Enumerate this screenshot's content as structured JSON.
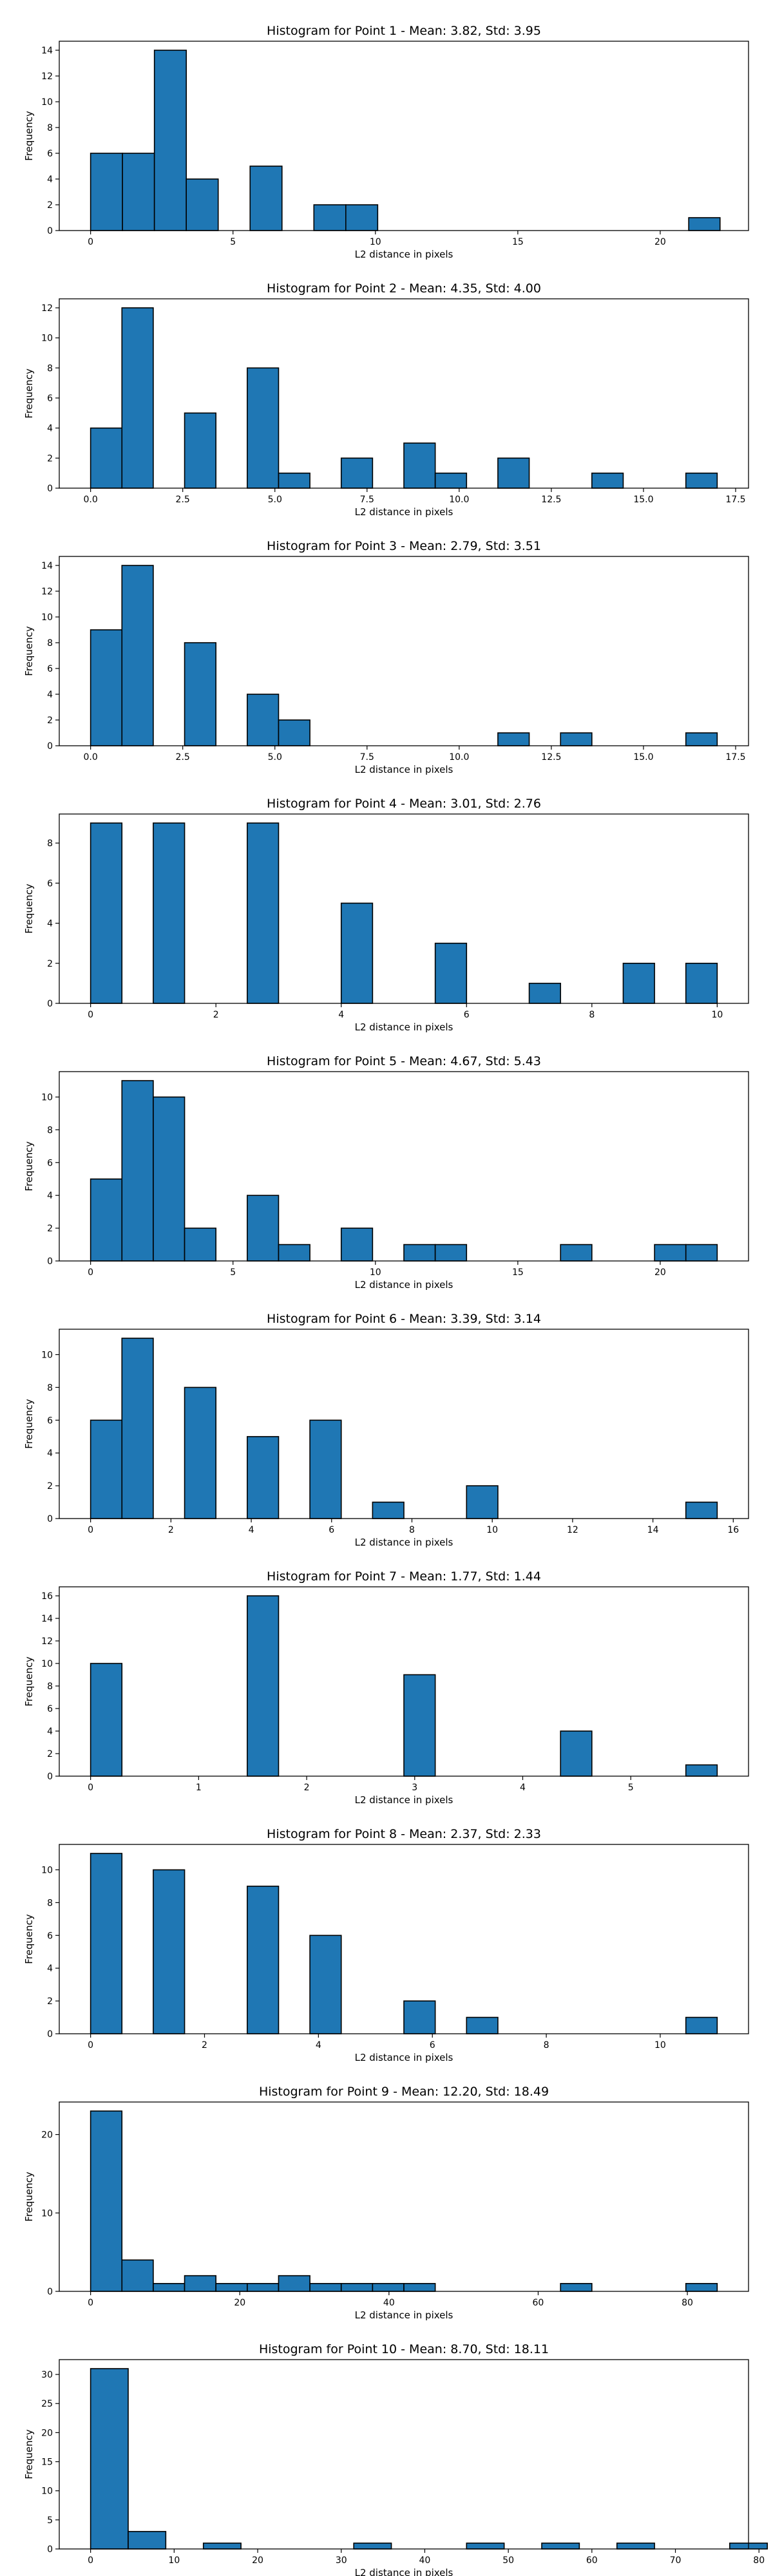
{
  "chart_data": [
    {
      "type": "bar",
      "title": "Histogram for Point 1 - Mean: 3.82, Std: 3.95",
      "xlabel": "L2 distance in pixels",
      "ylabel": "Frequency",
      "xlim": [
        -1.1,
        23.1
      ],
      "ylim": [
        0,
        14.7
      ],
      "xticks": [
        {
          "v": 0,
          "l": "0"
        },
        {
          "v": 5,
          "l": "5"
        },
        {
          "v": 10,
          "l": "10"
        },
        {
          "v": 15,
          "l": "15"
        },
        {
          "v": 20,
          "l": "20"
        }
      ],
      "yticks": [
        {
          "v": 0,
          "l": "0"
        },
        {
          "v": 2,
          "l": "2"
        },
        {
          "v": 4,
          "l": "4"
        },
        {
          "v": 6,
          "l": "6"
        },
        {
          "v": 8,
          "l": "8"
        },
        {
          "v": 10,
          "l": "10"
        },
        {
          "v": 12,
          "l": "12"
        },
        {
          "v": 14,
          "l": "14"
        }
      ],
      "bins": [
        [
          0,
          1.12,
          6
        ],
        [
          1.12,
          2.24,
          6
        ],
        [
          2.24,
          3.36,
          14
        ],
        [
          3.36,
          4.48,
          4
        ],
        [
          5.6,
          6.72,
          5
        ],
        [
          7.84,
          8.96,
          2
        ],
        [
          8.96,
          10.08,
          2
        ],
        [
          21.0,
          22.1,
          1
        ]
      ],
      "grid": false
    },
    {
      "type": "bar",
      "title": "Histogram for Point 2 - Mean: 4.35, Std: 4.00",
      "xlabel": "L2 distance in pixels",
      "ylabel": "Frequency",
      "xlim": [
        -0.85,
        17.85
      ],
      "ylim": [
        0,
        12.6
      ],
      "xticks": [
        {
          "v": 0,
          "l": "0.0"
        },
        {
          "v": 2.5,
          "l": "2.5"
        },
        {
          "v": 5,
          "l": "5.0"
        },
        {
          "v": 7.5,
          "l": "7.5"
        },
        {
          "v": 10,
          "l": "10.0"
        },
        {
          "v": 12.5,
          "l": "12.5"
        },
        {
          "v": 15,
          "l": "15.0"
        },
        {
          "v": 17.5,
          "l": "17.5"
        }
      ],
      "yticks": [
        {
          "v": 0,
          "l": "0"
        },
        {
          "v": 2,
          "l": "2"
        },
        {
          "v": 4,
          "l": "4"
        },
        {
          "v": 6,
          "l": "6"
        },
        {
          "v": 8,
          "l": "8"
        },
        {
          "v": 10,
          "l": "10"
        },
        {
          "v": 12,
          "l": "12"
        }
      ],
      "bins": [
        [
          0,
          0.85,
          4
        ],
        [
          0.85,
          1.7,
          12
        ],
        [
          2.55,
          3.4,
          5
        ],
        [
          4.25,
          5.1,
          8
        ],
        [
          5.1,
          5.95,
          1
        ],
        [
          6.8,
          7.65,
          2
        ],
        [
          8.5,
          9.35,
          3
        ],
        [
          9.35,
          10.2,
          1
        ],
        [
          11.05,
          11.9,
          2
        ],
        [
          13.6,
          14.45,
          1
        ],
        [
          16.15,
          17.0,
          1
        ]
      ],
      "grid": false
    },
    {
      "type": "bar",
      "title": "Histogram for Point 3 - Mean: 2.79, Std: 3.51",
      "xlabel": "L2 distance in pixels",
      "ylabel": "Frequency",
      "xlim": [
        -0.85,
        17.85
      ],
      "ylim": [
        0,
        14.7
      ],
      "xticks": [
        {
          "v": 0,
          "l": "0.0"
        },
        {
          "v": 2.5,
          "l": "2.5"
        },
        {
          "v": 5,
          "l": "5.0"
        },
        {
          "v": 7.5,
          "l": "7.5"
        },
        {
          "v": 10,
          "l": "10.0"
        },
        {
          "v": 12.5,
          "l": "12.5"
        },
        {
          "v": 15,
          "l": "15.0"
        },
        {
          "v": 17.5,
          "l": "17.5"
        }
      ],
      "yticks": [
        {
          "v": 0,
          "l": "0"
        },
        {
          "v": 2,
          "l": "2"
        },
        {
          "v": 4,
          "l": "4"
        },
        {
          "v": 6,
          "l": "6"
        },
        {
          "v": 8,
          "l": "8"
        },
        {
          "v": 10,
          "l": "10"
        },
        {
          "v": 12,
          "l": "12"
        },
        {
          "v": 14,
          "l": "14"
        }
      ],
      "bins": [
        [
          0,
          0.85,
          9
        ],
        [
          0.85,
          1.7,
          14
        ],
        [
          2.55,
          3.4,
          8
        ],
        [
          4.25,
          5.1,
          4
        ],
        [
          5.1,
          5.95,
          2
        ],
        [
          11.05,
          11.9,
          1
        ],
        [
          12.75,
          13.6,
          1
        ],
        [
          16.15,
          17.0,
          1
        ]
      ],
      "grid": false
    },
    {
      "type": "bar",
      "title": "Histogram for Point 4 - Mean: 3.01, Std: 2.76",
      "xlabel": "L2 distance in pixels",
      "ylabel": "Frequency",
      "xlim": [
        -0.5,
        10.5
      ],
      "ylim": [
        0,
        9.45
      ],
      "xticks": [
        {
          "v": 0,
          "l": "0"
        },
        {
          "v": 2,
          "l": "2"
        },
        {
          "v": 4,
          "l": "4"
        },
        {
          "v": 6,
          "l": "6"
        },
        {
          "v": 8,
          "l": "8"
        },
        {
          "v": 10,
          "l": "10"
        }
      ],
      "yticks": [
        {
          "v": 0,
          "l": "0"
        },
        {
          "v": 2,
          "l": "2"
        },
        {
          "v": 4,
          "l": "4"
        },
        {
          "v": 6,
          "l": "6"
        },
        {
          "v": 8,
          "l": "8"
        }
      ],
      "bins": [
        [
          0,
          0.5,
          9
        ],
        [
          1.0,
          1.5,
          9
        ],
        [
          2.5,
          3.0,
          9
        ],
        [
          4.0,
          4.5,
          5
        ],
        [
          5.5,
          6.0,
          3
        ],
        [
          7.0,
          7.5,
          1
        ],
        [
          8.5,
          9.0,
          2
        ],
        [
          9.5,
          10.0,
          2
        ]
      ],
      "grid": false
    },
    {
      "type": "bar",
      "title": "Histogram for Point 5 - Mean: 4.67, Std: 5.43",
      "xlabel": "L2 distance in pixels",
      "ylabel": "Frequency",
      "xlim": [
        -1.1,
        23.1
      ],
      "ylim": [
        0,
        11.55
      ],
      "xticks": [
        {
          "v": 0,
          "l": "0"
        },
        {
          "v": 5,
          "l": "5"
        },
        {
          "v": 10,
          "l": "10"
        },
        {
          "v": 15,
          "l": "15"
        },
        {
          "v": 20,
          "l": "20"
        }
      ],
      "yticks": [
        {
          "v": 0,
          "l": "0"
        },
        {
          "v": 2,
          "l": "2"
        },
        {
          "v": 4,
          "l": "4"
        },
        {
          "v": 6,
          "l": "6"
        },
        {
          "v": 8,
          "l": "8"
        },
        {
          "v": 10,
          "l": "10"
        }
      ],
      "bins": [
        [
          0,
          1.1,
          5
        ],
        [
          1.1,
          2.2,
          11
        ],
        [
          2.2,
          3.3,
          10
        ],
        [
          3.3,
          4.4,
          2
        ],
        [
          5.5,
          6.6,
          4
        ],
        [
          6.6,
          7.7,
          1
        ],
        [
          8.8,
          9.9,
          2
        ],
        [
          11.0,
          12.1,
          1
        ],
        [
          12.1,
          13.2,
          1
        ],
        [
          16.5,
          17.6,
          1
        ],
        [
          19.8,
          20.9,
          1
        ],
        [
          20.9,
          22.0,
          1
        ]
      ],
      "grid": false
    },
    {
      "type": "bar",
      "title": "Histogram for Point 6 - Mean: 3.39, Std: 3.14",
      "xlabel": "L2 distance in pixels",
      "ylabel": "Frequency",
      "xlim": [
        -0.78,
        16.38
      ],
      "ylim": [
        0,
        11.55
      ],
      "xticks": [
        {
          "v": 0,
          "l": "0"
        },
        {
          "v": 2,
          "l": "2"
        },
        {
          "v": 4,
          "l": "4"
        },
        {
          "v": 6,
          "l": "6"
        },
        {
          "v": 8,
          "l": "8"
        },
        {
          "v": 10,
          "l": "10"
        },
        {
          "v": 12,
          "l": "12"
        },
        {
          "v": 14,
          "l": "14"
        },
        {
          "v": 16,
          "l": "16"
        }
      ],
      "yticks": [
        {
          "v": 0,
          "l": "0"
        },
        {
          "v": 2,
          "l": "2"
        },
        {
          "v": 4,
          "l": "4"
        },
        {
          "v": 6,
          "l": "6"
        },
        {
          "v": 8,
          "l": "8"
        },
        {
          "v": 10,
          "l": "10"
        }
      ],
      "bins": [
        [
          0,
          0.78,
          6
        ],
        [
          0.78,
          1.56,
          11
        ],
        [
          2.34,
          3.12,
          8
        ],
        [
          3.9,
          4.68,
          5
        ],
        [
          5.46,
          6.24,
          6
        ],
        [
          7.02,
          7.8,
          1
        ],
        [
          9.36,
          10.14,
          2
        ],
        [
          14.82,
          15.6,
          1
        ]
      ],
      "grid": false
    },
    {
      "type": "bar",
      "title": "Histogram for Point 7 - Mean: 1.77, Std: 1.44",
      "xlabel": "L2 distance in pixels",
      "ylabel": "Frequency",
      "xlim": [
        -0.29,
        6.09
      ],
      "ylim": [
        0,
        16.8
      ],
      "xticks": [
        {
          "v": 0,
          "l": "0"
        },
        {
          "v": 1,
          "l": "1"
        },
        {
          "v": 2,
          "l": "2"
        },
        {
          "v": 3,
          "l": "3"
        },
        {
          "v": 4,
          "l": "4"
        },
        {
          "v": 5,
          "l": "5"
        }
      ],
      "yticks": [
        {
          "v": 0,
          "l": "0"
        },
        {
          "v": 2,
          "l": "2"
        },
        {
          "v": 4,
          "l": "4"
        },
        {
          "v": 6,
          "l": "6"
        },
        {
          "v": 8,
          "l": "8"
        },
        {
          "v": 10,
          "l": "10"
        },
        {
          "v": 12,
          "l": "12"
        },
        {
          "v": 14,
          "l": "14"
        },
        {
          "v": 16,
          "l": "16"
        }
      ],
      "bins": [
        [
          0,
          0.29,
          10
        ],
        [
          1.45,
          1.74,
          16
        ],
        [
          2.9,
          3.19,
          9
        ],
        [
          4.35,
          4.64,
          4
        ],
        [
          5.51,
          5.8,
          1
        ]
      ],
      "grid": false
    },
    {
      "type": "bar",
      "title": "Histogram for Point 8 - Mean: 2.37, Std: 2.33",
      "xlabel": "L2 distance in pixels",
      "ylabel": "Frequency",
      "xlim": [
        -0.55,
        11.55
      ],
      "ylim": [
        0,
        11.55
      ],
      "xticks": [
        {
          "v": 0,
          "l": "0"
        },
        {
          "v": 2,
          "l": "2"
        },
        {
          "v": 4,
          "l": "4"
        },
        {
          "v": 6,
          "l": "6"
        },
        {
          "v": 8,
          "l": "8"
        },
        {
          "v": 10,
          "l": "10"
        }
      ],
      "yticks": [
        {
          "v": 0,
          "l": "0"
        },
        {
          "v": 2,
          "l": "2"
        },
        {
          "v": 4,
          "l": "4"
        },
        {
          "v": 6,
          "l": "6"
        },
        {
          "v": 8,
          "l": "8"
        },
        {
          "v": 10,
          "l": "10"
        }
      ],
      "bins": [
        [
          0,
          0.55,
          11
        ],
        [
          1.1,
          1.65,
          10
        ],
        [
          2.75,
          3.3,
          9
        ],
        [
          3.85,
          4.4,
          6
        ],
        [
          5.5,
          6.05,
          2
        ],
        [
          6.6,
          7.15,
          1
        ],
        [
          10.45,
          11.0,
          1
        ]
      ],
      "grid": false
    },
    {
      "type": "bar",
      "title": "Histogram for Point 9 - Mean: 12.20, Std: 18.49",
      "xlabel": "L2 distance in pixels",
      "ylabel": "Frequency",
      "xlim": [
        -4.2,
        88.2
      ],
      "ylim": [
        0,
        24.15
      ],
      "xticks": [
        {
          "v": 0,
          "l": "0"
        },
        {
          "v": 20,
          "l": "20"
        },
        {
          "v": 40,
          "l": "40"
        },
        {
          "v": 60,
          "l": "60"
        },
        {
          "v": 80,
          "l": "80"
        }
      ],
      "yticks": [
        {
          "v": 0,
          "l": "0"
        },
        {
          "v": 10,
          "l": "10"
        },
        {
          "v": 20,
          "l": "20"
        }
      ],
      "bins": [
        [
          0,
          4.2,
          23
        ],
        [
          4.2,
          8.4,
          4
        ],
        [
          8.4,
          12.6,
          1
        ],
        [
          12.6,
          16.8,
          2
        ],
        [
          16.8,
          21.0,
          1
        ],
        [
          21.0,
          25.2,
          1
        ],
        [
          25.2,
          29.4,
          2
        ],
        [
          29.4,
          33.6,
          1
        ],
        [
          33.6,
          37.8,
          1
        ],
        [
          37.8,
          42.0,
          1
        ],
        [
          42.0,
          46.2,
          1
        ],
        [
          63.0,
          67.2,
          1
        ],
        [
          79.8,
          84.0,
          1
        ]
      ],
      "grid": false
    },
    {
      "type": "bar",
      "title": "Histogram for Point 10 - Mean: 8.70, Std: 18.11",
      "xlabel": "L2 distance in pixels",
      "ylabel": "Frequency",
      "xlim": [
        -3.75,
        78.75
      ],
      "ylim": [
        0,
        32.55
      ],
      "xticks": [
        {
          "v": 0,
          "l": "0"
        },
        {
          "v": 10,
          "l": "10"
        },
        {
          "v": 20,
          "l": "20"
        },
        {
          "v": 30,
          "l": "30"
        },
        {
          "v": 40,
          "l": "40"
        },
        {
          "v": 50,
          "l": "50"
        },
        {
          "v": 60,
          "l": "60"
        },
        {
          "v": 70,
          "l": "70"
        },
        {
          "v": 80,
          "l": "80"
        }
      ],
      "yticks": [
        {
          "v": 0,
          "l": "0"
        },
        {
          "v": 5,
          "l": "5"
        },
        {
          "v": 10,
          "l": "10"
        },
        {
          "v": 15,
          "l": "15"
        },
        {
          "v": 20,
          "l": "20"
        },
        {
          "v": 25,
          "l": "25"
        },
        {
          "v": 30,
          "l": "30"
        }
      ],
      "bins": [
        [
          0,
          4.5,
          31
        ],
        [
          4.5,
          9.0,
          3
        ],
        [
          13.5,
          18.0,
          1
        ],
        [
          31.5,
          36.0,
          1
        ],
        [
          45.0,
          49.5,
          1
        ],
        [
          63.0,
          67.5,
          1
        ],
        [
          76.5,
          81.0,
          1
        ],
        [
          54.0,
          58.5,
          1
        ]
      ],
      "grid": false
    }
  ]
}
